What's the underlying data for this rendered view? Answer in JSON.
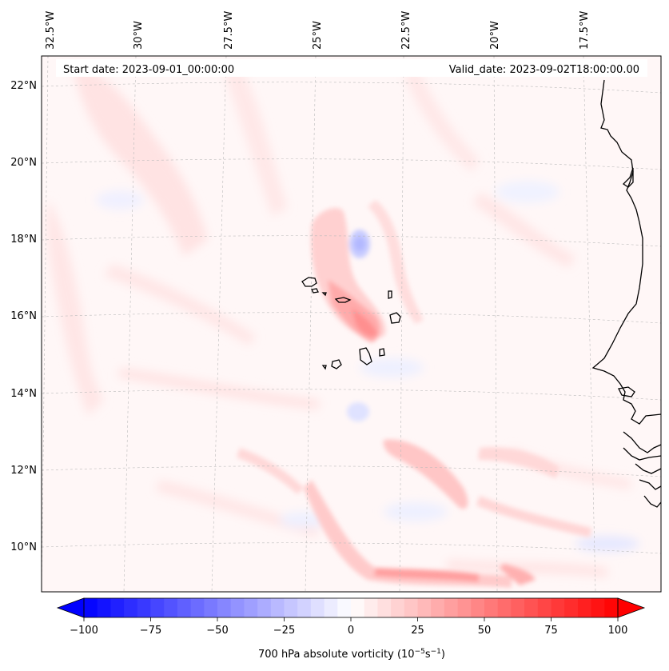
{
  "map": {
    "header": {
      "start_date": "Start date: 2023-09-01_00:00:00",
      "valid_date": "Valid_date: 2023-09-02T18:00:00.00"
    },
    "lon_labels": [
      "32.5°W",
      "30°W",
      "27.5°W",
      "25°W",
      "22.5°W",
      "20°W",
      "17.5°W"
    ],
    "lat_labels": [
      "22°N",
      "20°N",
      "18°N",
      "16°N",
      "14°N",
      "12°N",
      "10°N"
    ],
    "colorbar": {
      "ticks": [
        "−100",
        "−75",
        "−50",
        "−25",
        "0",
        "25",
        "50",
        "75",
        "100"
      ],
      "label": "700 hPa absolute vorticity (10",
      "label_exp1": "−5",
      "label_mid": "s",
      "label_exp2": "−1",
      "label_end": ")",
      "min": -100,
      "max": 100,
      "levels": 40,
      "neg_color": "#0000ff",
      "pos_color": "#ff0000"
    },
    "colors": {
      "background_tint": "#fff6f6",
      "coastline": "#000000",
      "grid": "#bbbbbb"
    }
  }
}
